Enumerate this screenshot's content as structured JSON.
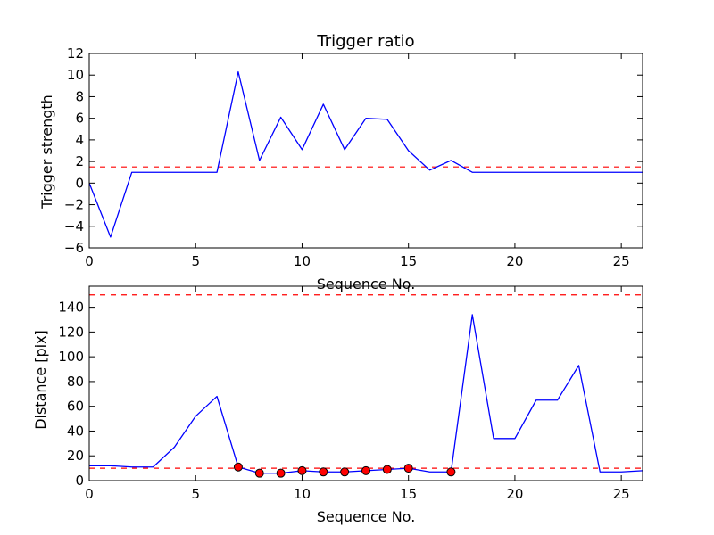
{
  "chart_data": [
    {
      "type": "line",
      "title": "Trigger ratio",
      "xlabel": "Sequence No.",
      "ylabel": "Trigger strength",
      "xlim": [
        0,
        26
      ],
      "ylim": [
        -6,
        12
      ],
      "xticks": [
        0,
        5,
        10,
        15,
        20,
        25
      ],
      "yticks": [
        -6,
        -4,
        -2,
        0,
        2,
        4,
        6,
        8,
        10,
        12
      ],
      "ytick_labels": [
        "−6",
        "−4",
        "−2",
        "0",
        "2",
        "4",
        "6",
        "8",
        "10",
        "12"
      ],
      "grid": false,
      "series": [
        {
          "color": "#0000ff",
          "style": "solid",
          "x": [
            0,
            1,
            2,
            3,
            4,
            5,
            6,
            7,
            8,
            9,
            10,
            11,
            12,
            13,
            14,
            15,
            16,
            17,
            18,
            19,
            20,
            21,
            22,
            23,
            24,
            25,
            26
          ],
          "y": [
            0,
            -5,
            1,
            1,
            1,
            1,
            1,
            10.3,
            2.1,
            6.1,
            3.1,
            7.3,
            3.1,
            6.0,
            5.9,
            3.0,
            1.2,
            2.1,
            1,
            1,
            1,
            1,
            1,
            1,
            1,
            1,
            1
          ]
        }
      ],
      "hlines": [
        {
          "y": 1.5,
          "color": "#ff0000",
          "style": "dashed"
        }
      ]
    },
    {
      "type": "line",
      "xlabel": "Sequence No.",
      "ylabel": "Distance [pix]",
      "xlim": [
        0,
        26
      ],
      "ylim": [
        0,
        157
      ],
      "xticks": [
        0,
        5,
        10,
        15,
        20,
        25
      ],
      "yticks": [
        0,
        20,
        40,
        60,
        80,
        100,
        120,
        140
      ],
      "grid": false,
      "series": [
        {
          "color": "#0000ff",
          "style": "solid",
          "x": [
            0,
            1,
            2,
            3,
            4,
            5,
            6,
            7,
            8,
            9,
            10,
            11,
            12,
            13,
            14,
            15,
            16,
            17,
            18,
            19,
            20,
            21,
            22,
            23,
            24,
            25,
            26
          ],
          "y": [
            12,
            12,
            11,
            11,
            27,
            52,
            68,
            11,
            6,
            6,
            8,
            7,
            7,
            8,
            9,
            10,
            7,
            7,
            134,
            34,
            34,
            65,
            65,
            93,
            7,
            7,
            8
          ]
        },
        {
          "color": "#ff0000",
          "style": "markers",
          "x": [
            7,
            8,
            9,
            10,
            11,
            12,
            13,
            14,
            15,
            17
          ],
          "y": [
            11,
            6,
            6,
            8,
            7,
            7,
            8,
            9,
            10,
            7
          ]
        }
      ],
      "hlines": [
        {
          "y": 10,
          "color": "#ff0000",
          "style": "dashed"
        },
        {
          "y": 150,
          "color": "#ff0000",
          "style": "dashed"
        }
      ]
    }
  ]
}
